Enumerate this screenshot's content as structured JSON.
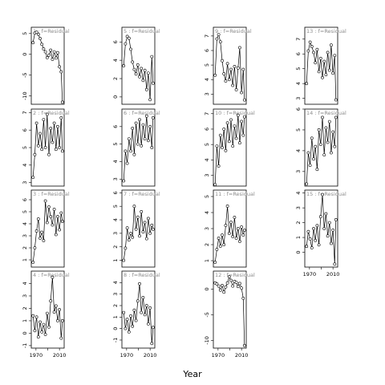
{
  "chart_data": {
    "type": "line",
    "title": "",
    "xlabel": "Year",
    "strip_label": "f=Residual",
    "panels": [
      {
        "id": "1",
        "ylim": [
          -12,
          6.5
        ],
        "yticks": [
          -10,
          -5,
          0,
          5
        ],
        "x": [
          1965,
          1968,
          1971,
          1974,
          1977,
          1980,
          1983,
          1986,
          1989,
          1992,
          1995,
          1998,
          2001,
          2004,
          2007,
          2010,
          2013,
          2015
        ],
        "y": [
          2.8,
          5.1,
          5.3,
          4.8,
          3.8,
          2.4,
          1.3,
          0.6,
          -0.8,
          -0.2,
          1.0,
          -1.2,
          0.6,
          -0.9,
          0.4,
          -3.0,
          -4.2,
          -11.5
        ]
      },
      {
        "id": "2",
        "ylim": [
          2.8,
          7.2
        ],
        "yticks": [
          3,
          4,
          5,
          6,
          7
        ],
        "x": [
          1965,
          1968,
          1971,
          1974,
          1977,
          1980,
          1983,
          1986,
          1989,
          1992,
          1995,
          1998,
          2001,
          2004,
          2007,
          2010,
          2013,
          2015
        ],
        "y": [
          3.3,
          4.6,
          6.4,
          5.1,
          5.8,
          4.9,
          6.6,
          5.0,
          6.9,
          4.6,
          6.1,
          5.3,
          6.4,
          4.9,
          6.2,
          5.0,
          6.7,
          4.8
        ]
      },
      {
        "id": "3",
        "ylim": [
          0.4,
          6.8
        ],
        "yticks": [
          1,
          2,
          3,
          4,
          5,
          6
        ],
        "x": [
          1965,
          1968,
          1971,
          1974,
          1977,
          1980,
          1983,
          1986,
          1989,
          1992,
          1995,
          1998,
          2001,
          2004,
          2007,
          2010,
          2013,
          2015
        ],
        "y": [
          0.8,
          2.0,
          3.4,
          4.4,
          2.8,
          3.3,
          2.6,
          5.9,
          4.1,
          5.4,
          4.6,
          3.9,
          5.2,
          3.1,
          4.6,
          3.5,
          4.9,
          4.2
        ]
      },
      {
        "id": "4",
        "ylim": [
          -1.2,
          5.0
        ],
        "yticks": [
          -1,
          0,
          1,
          2,
          3,
          4
        ],
        "x": [
          1965,
          1968,
          1971,
          1974,
          1977,
          1980,
          1983,
          1986,
          1989,
          1992,
          1995,
          1998,
          2001,
          2004,
          2007,
          2010,
          2013,
          2015
        ],
        "y": [
          1.4,
          0.2,
          1.3,
          -0.3,
          0.9,
          0.1,
          0.7,
          -0.1,
          1.6,
          0.5,
          2.6,
          4.5,
          1.7,
          2.2,
          1.0,
          1.9,
          -0.4,
          1.0
        ]
      },
      {
        "id": "5",
        "ylim": [
          -0.8,
          7.6
        ],
        "yticks": [
          0,
          2,
          4,
          6
        ],
        "x": [
          1965,
          1968,
          1971,
          1974,
          1977,
          1980,
          1983,
          1986,
          1989,
          1992,
          1995,
          1998,
          2001,
          2004,
          2007,
          2010,
          2013,
          2015
        ],
        "y": [
          3.4,
          5.8,
          6.6,
          6.4,
          5.2,
          3.8,
          3.0,
          2.5,
          3.5,
          2.2,
          3.1,
          1.8,
          2.9,
          0.8,
          2.6,
          -0.3,
          4.4,
          1.5
        ]
      },
      {
        "id": "6",
        "ylim": [
          2.6,
          7.0
        ],
        "yticks": [
          3,
          4,
          5,
          6
        ],
        "x": [
          1965,
          1968,
          1971,
          1974,
          1977,
          1980,
          1983,
          1986,
          1989,
          1992,
          1995,
          1998,
          2001,
          2004,
          2007,
          2010,
          2013,
          2015
        ],
        "y": [
          2.9,
          4.6,
          3.9,
          5.3,
          4.6,
          5.9,
          4.4,
          6.2,
          5.0,
          6.4,
          4.9,
          6.1,
          5.3,
          6.6,
          5.2,
          6.0,
          4.8,
          6.5
        ]
      },
      {
        "id": "7",
        "ylim": [
          0.5,
          6.2
        ],
        "yticks": [
          1,
          2,
          3,
          4,
          5,
          6
        ],
        "x": [
          1965,
          1968,
          1971,
          1974,
          1977,
          1980,
          1983,
          1986,
          1989,
          1992,
          1995,
          1998,
          2001,
          2004,
          2007,
          2010,
          2013,
          2015
        ],
        "y": [
          1.0,
          1.9,
          3.4,
          2.5,
          3.0,
          2.7,
          5.0,
          3.3,
          4.2,
          2.8,
          4.6,
          3.1,
          3.8,
          2.6,
          4.1,
          3.0,
          3.6,
          3.3
        ]
      },
      {
        "id": "8",
        "ylim": [
          -1.7,
          5.0
        ],
        "yticks": [
          -1,
          0,
          1,
          2,
          3,
          4
        ],
        "x": [
          1965,
          1968,
          1971,
          1974,
          1977,
          1980,
          1983,
          1986,
          1989,
          1992,
          1995,
          1998,
          2001,
          2004,
          2007,
          2010,
          2013,
          2015
        ],
        "y": [
          1.4,
          0.0,
          0.8,
          -0.3,
          1.1,
          0.2,
          1.6,
          0.7,
          2.4,
          3.9,
          1.4,
          2.7,
          1.2,
          2.0,
          0.4,
          1.8,
          -1.3,
          0.1
        ]
      },
      {
        "id": "9",
        "ylim": [
          2.3,
          7.6
        ],
        "yticks": [
          3,
          4,
          5,
          6,
          7
        ],
        "x": [
          1965,
          1968,
          1971,
          1974,
          1977,
          1980,
          1983,
          1986,
          1989,
          1992,
          1995,
          1998,
          2001,
          2004,
          2007,
          2010,
          2013,
          2015
        ],
        "y": [
          4.3,
          6.8,
          7.1,
          6.6,
          5.3,
          4.4,
          3.9,
          5.1,
          4.0,
          4.7,
          3.6,
          4.9,
          3.3,
          4.8,
          6.2,
          3.1,
          4.7,
          2.6
        ]
      },
      {
        "id": "10",
        "ylim": [
          2.3,
          7.3
        ],
        "yticks": [
          3,
          4,
          5,
          6,
          7
        ],
        "x": [
          1965,
          1968,
          1971,
          1974,
          1977,
          1980,
          1983,
          1986,
          1989,
          1992,
          1995,
          1998,
          2001,
          2004,
          2007,
          2010,
          2013,
          2015
        ],
        "y": [
          2.4,
          4.9,
          3.6,
          5.6,
          4.8,
          6.0,
          4.6,
          6.4,
          5.2,
          6.6,
          4.9,
          6.2,
          5.4,
          6.9,
          5.1,
          6.5,
          5.6,
          6.8
        ]
      },
      {
        "id": "11",
        "ylim": [
          0.6,
          5.4
        ],
        "yticks": [
          1,
          2,
          3,
          4,
          5
        ],
        "x": [
          1965,
          1968,
          1971,
          1974,
          1977,
          1980,
          1983,
          1986,
          1989,
          1992,
          1995,
          1998,
          2001,
          2004,
          2007,
          2010,
          2013,
          2015
        ],
        "y": [
          0.9,
          1.7,
          2.4,
          1.9,
          2.6,
          2.0,
          3.2,
          4.4,
          2.7,
          3.4,
          2.5,
          3.7,
          2.4,
          3.0,
          2.2,
          3.1,
          2.6,
          2.9
        ]
      },
      {
        "id": "12",
        "ylim": [
          -11.5,
          3.5
        ],
        "yticks": [
          -10,
          -5,
          0
        ],
        "x": [
          1965,
          1968,
          1971,
          1974,
          1977,
          1980,
          1983,
          1986,
          1989,
          1992,
          1995,
          1998,
          2001,
          2004,
          2007,
          2010,
          2013,
          2015
        ],
        "y": [
          1.2,
          1.0,
          0.6,
          -0.2,
          0.7,
          -0.6,
          0.4,
          1.2,
          2.4,
          1.7,
          0.6,
          1.5,
          1.3,
          0.5,
          1.1,
          0.2,
          -1.8,
          -11.0
        ]
      },
      {
        "id": "13",
        "ylim": [
          2.6,
          7.8
        ],
        "yticks": [
          3,
          4,
          5,
          6,
          7
        ],
        "x": [
          1965,
          1968,
          1971,
          1974,
          1977,
          1980,
          1983,
          1986,
          1989,
          1992,
          1995,
          1998,
          2001,
          2004,
          2007,
          2010,
          2013,
          2015
        ],
        "y": [
          4.0,
          6.2,
          6.8,
          6.5,
          6.1,
          5.4,
          6.3,
          4.8,
          5.7,
          4.4,
          5.5,
          4.6,
          6.1,
          4.9,
          6.6,
          4.7,
          5.9,
          2.9
        ]
      },
      {
        "id": "14",
        "ylim": [
          2.3,
          6.0
        ],
        "yticks": [
          3,
          4,
          5,
          6
        ],
        "x": [
          1965,
          1968,
          1971,
          1974,
          1977,
          1980,
          1983,
          1986,
          1989,
          1992,
          1995,
          1998,
          2001,
          2004,
          2007,
          2010,
          2013,
          2015
        ],
        "y": [
          2.4,
          3.9,
          3.3,
          4.6,
          3.6,
          4.2,
          3.1,
          5.0,
          4.3,
          5.6,
          3.8,
          5.1,
          4.4,
          5.4,
          3.9,
          4.9,
          4.2,
          5.6
        ]
      },
      {
        "id": "15",
        "ylim": [
          -1.0,
          4.2
        ],
        "yticks": [
          0,
          1,
          2,
          3,
          4
        ],
        "x": [
          1965,
          1968,
          1971,
          1974,
          1977,
          1980,
          1983,
          1986,
          1989,
          1992,
          1995,
          1998,
          2001,
          2004,
          2007,
          2010,
          2013,
          2015
        ],
        "y": [
          0.4,
          1.4,
          0.9,
          0.3,
          1.6,
          0.8,
          1.8,
          0.5,
          2.4,
          3.9,
          1.6,
          2.6,
          1.1,
          2.0,
          0.6,
          1.5,
          -0.8,
          2.2
        ]
      }
    ]
  }
}
